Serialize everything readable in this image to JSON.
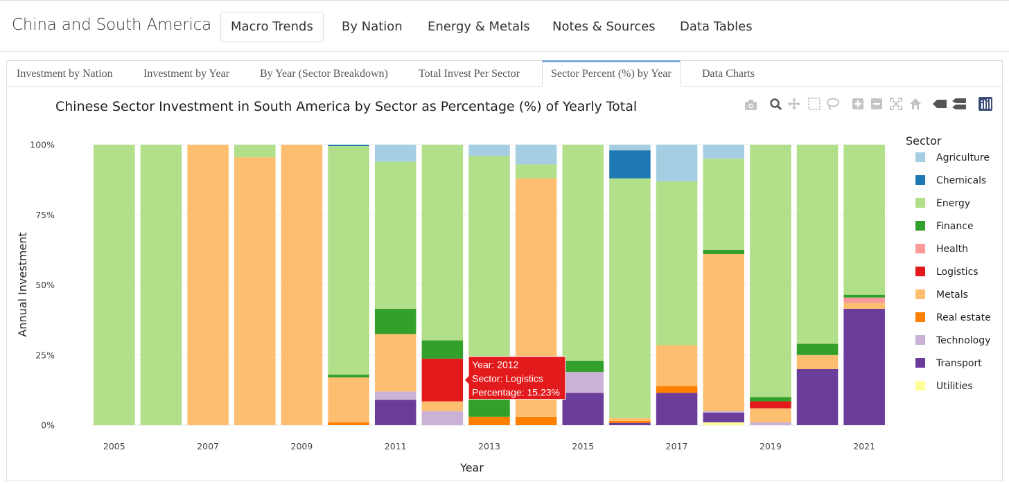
{
  "header": {
    "brand": "China and South America",
    "nav": [
      "Macro Trends",
      "By Nation",
      "Energy & Metals",
      "Notes & Sources",
      "Data Tables"
    ],
    "active_nav": 0
  },
  "tabs": {
    "items": [
      "Investment by Nation",
      "Investment by Year",
      "By Year (Sector Breakdown)",
      "Total Invest Per Sector",
      "Sector Percent (%) by Year",
      "Data Charts"
    ],
    "active": 4
  },
  "modebar": {
    "icons": [
      "camera-icon",
      "zoom-icon",
      "pan-icon",
      "box-select-icon",
      "lasso-icon",
      "zoom-in-icon",
      "zoom-out-icon",
      "autoscale-icon",
      "reset-axes-icon",
      "spike-lines-icon",
      "compare-data-icon",
      "plotly-logo-icon"
    ]
  },
  "chart_data": {
    "type": "bar",
    "stacked": true,
    "title": "Chinese Sector Investment in South America by Sector as Percentage (%) of Yearly Total",
    "xlabel": "Year",
    "ylabel": "Annual Investment",
    "x": [
      2005,
      2006,
      2007,
      2008,
      2009,
      2010,
      2011,
      2012,
      2013,
      2014,
      2015,
      2016,
      2017,
      2018,
      2019,
      2020,
      2021
    ],
    "x_ticks": [
      "2005",
      "2007",
      "2009",
      "2011",
      "2013",
      "2015",
      "2017",
      "2019",
      "2021"
    ],
    "y_ticks": [
      "0%",
      "25%",
      "50%",
      "75%",
      "100%"
    ],
    "ylim": [
      0,
      100
    ],
    "legend_title": "Sector",
    "legend_position": "right",
    "series": [
      {
        "name": "Utilities",
        "color": "#ffff99",
        "values": [
          0,
          0,
          0,
          0,
          0,
          0,
          0,
          0,
          0,
          0,
          0,
          0,
          0,
          1,
          0,
          0,
          0
        ]
      },
      {
        "name": "Transport",
        "color": "#6a3d9a",
        "values": [
          0,
          0,
          0,
          0,
          0,
          0,
          9,
          0,
          0,
          0,
          11.5,
          0.8,
          11.5,
          3.5,
          0,
          20,
          41.5
        ]
      },
      {
        "name": "Technology",
        "color": "#cab2d6",
        "values": [
          0,
          0,
          0,
          0,
          0,
          0,
          3,
          5,
          0,
          0,
          7.5,
          0,
          0,
          0.5,
          1,
          0,
          0
        ]
      },
      {
        "name": "Real estate",
        "color": "#ff7f00",
        "values": [
          0,
          0,
          0,
          0,
          0,
          1,
          0,
          0,
          3,
          3,
          0,
          0.7,
          2.5,
          0,
          0,
          0,
          0
        ]
      },
      {
        "name": "Metals",
        "color": "#fdbf6f",
        "values": [
          0,
          0,
          100,
          95.5,
          100,
          16,
          20.5,
          3.5,
          0,
          85,
          0,
          1,
          14.5,
          56,
          5,
          5,
          2
        ]
      },
      {
        "name": "Logistics",
        "color": "#e31a1c",
        "values": [
          0,
          0,
          0,
          0,
          0,
          0,
          0,
          15.23,
          0,
          0,
          0,
          0,
          0,
          0,
          2.5,
          0,
          0
        ]
      },
      {
        "name": "Health",
        "color": "#fb9a99",
        "values": [
          0,
          0,
          0,
          0,
          0,
          0,
          0,
          0,
          0,
          0,
          0,
          0,
          0,
          0,
          0,
          0,
          2
        ]
      },
      {
        "name": "Finance",
        "color": "#33a02c",
        "values": [
          0,
          0,
          0,
          0,
          0,
          1,
          9,
          6.5,
          9.5,
          0,
          4,
          0,
          0,
          1.5,
          1.5,
          4,
          1
        ]
      },
      {
        "name": "Energy",
        "color": "#b2df8a",
        "values": [
          100,
          100,
          0,
          4.5,
          0,
          81.5,
          52.5,
          69.77,
          83.5,
          5,
          77,
          85.5,
          58.5,
          32.5,
          90,
          71,
          53.5
        ]
      },
      {
        "name": "Chemicals",
        "color": "#1f78b4",
        "values": [
          0,
          0,
          0,
          0,
          0,
          0.5,
          0,
          0,
          0,
          0,
          0,
          10,
          0,
          0,
          0,
          0,
          0
        ]
      },
      {
        "name": "Agriculture",
        "color": "#a6cee3",
        "values": [
          0,
          0,
          0,
          0,
          0,
          0,
          6,
          0,
          4,
          7,
          0,
          2,
          13,
          5,
          0,
          0,
          0
        ]
      }
    ],
    "legend_order": [
      "Agriculture",
      "Chemicals",
      "Energy",
      "Finance",
      "Health",
      "Logistics",
      "Metals",
      "Real estate",
      "Technology",
      "Transport",
      "Utilities"
    ],
    "hover": {
      "year_index": 7,
      "series": "Logistics",
      "lines": [
        "Year: 2012",
        "Sector: Logistics",
        "Percentage: 15.23%"
      ],
      "bg_color": "#e31a1c"
    }
  }
}
